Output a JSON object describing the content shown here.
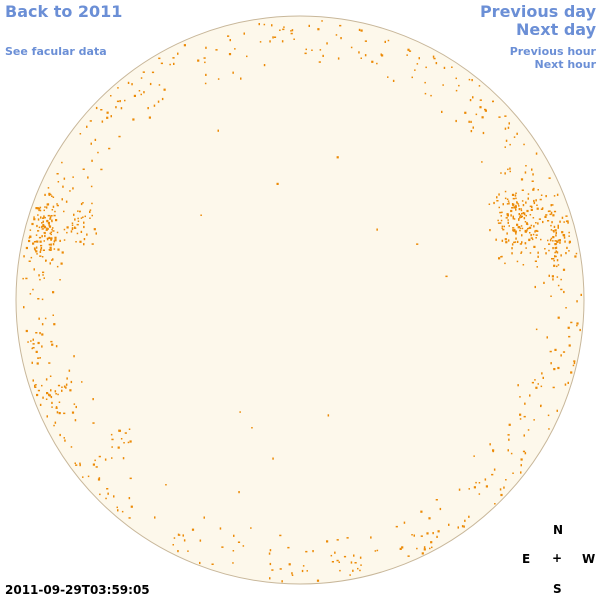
{
  "nav": {
    "back": "Back to 2011",
    "facular": "See facular data",
    "previous_day": "Previous day",
    "next_day": "Next day",
    "previous_hour": "Previous hour",
    "next_hour": "Next hour"
  },
  "timestamp": "2011-09-29T03:59:05",
  "compass": {
    "north": "N",
    "east": "E",
    "center": "+",
    "west": "W",
    "south": "S"
  },
  "colors": {
    "disk_fill": "#fdf8eb",
    "disk_stroke": "#c8b79a",
    "facula": "#ec8a06",
    "link": "#6b8fd6"
  }
}
